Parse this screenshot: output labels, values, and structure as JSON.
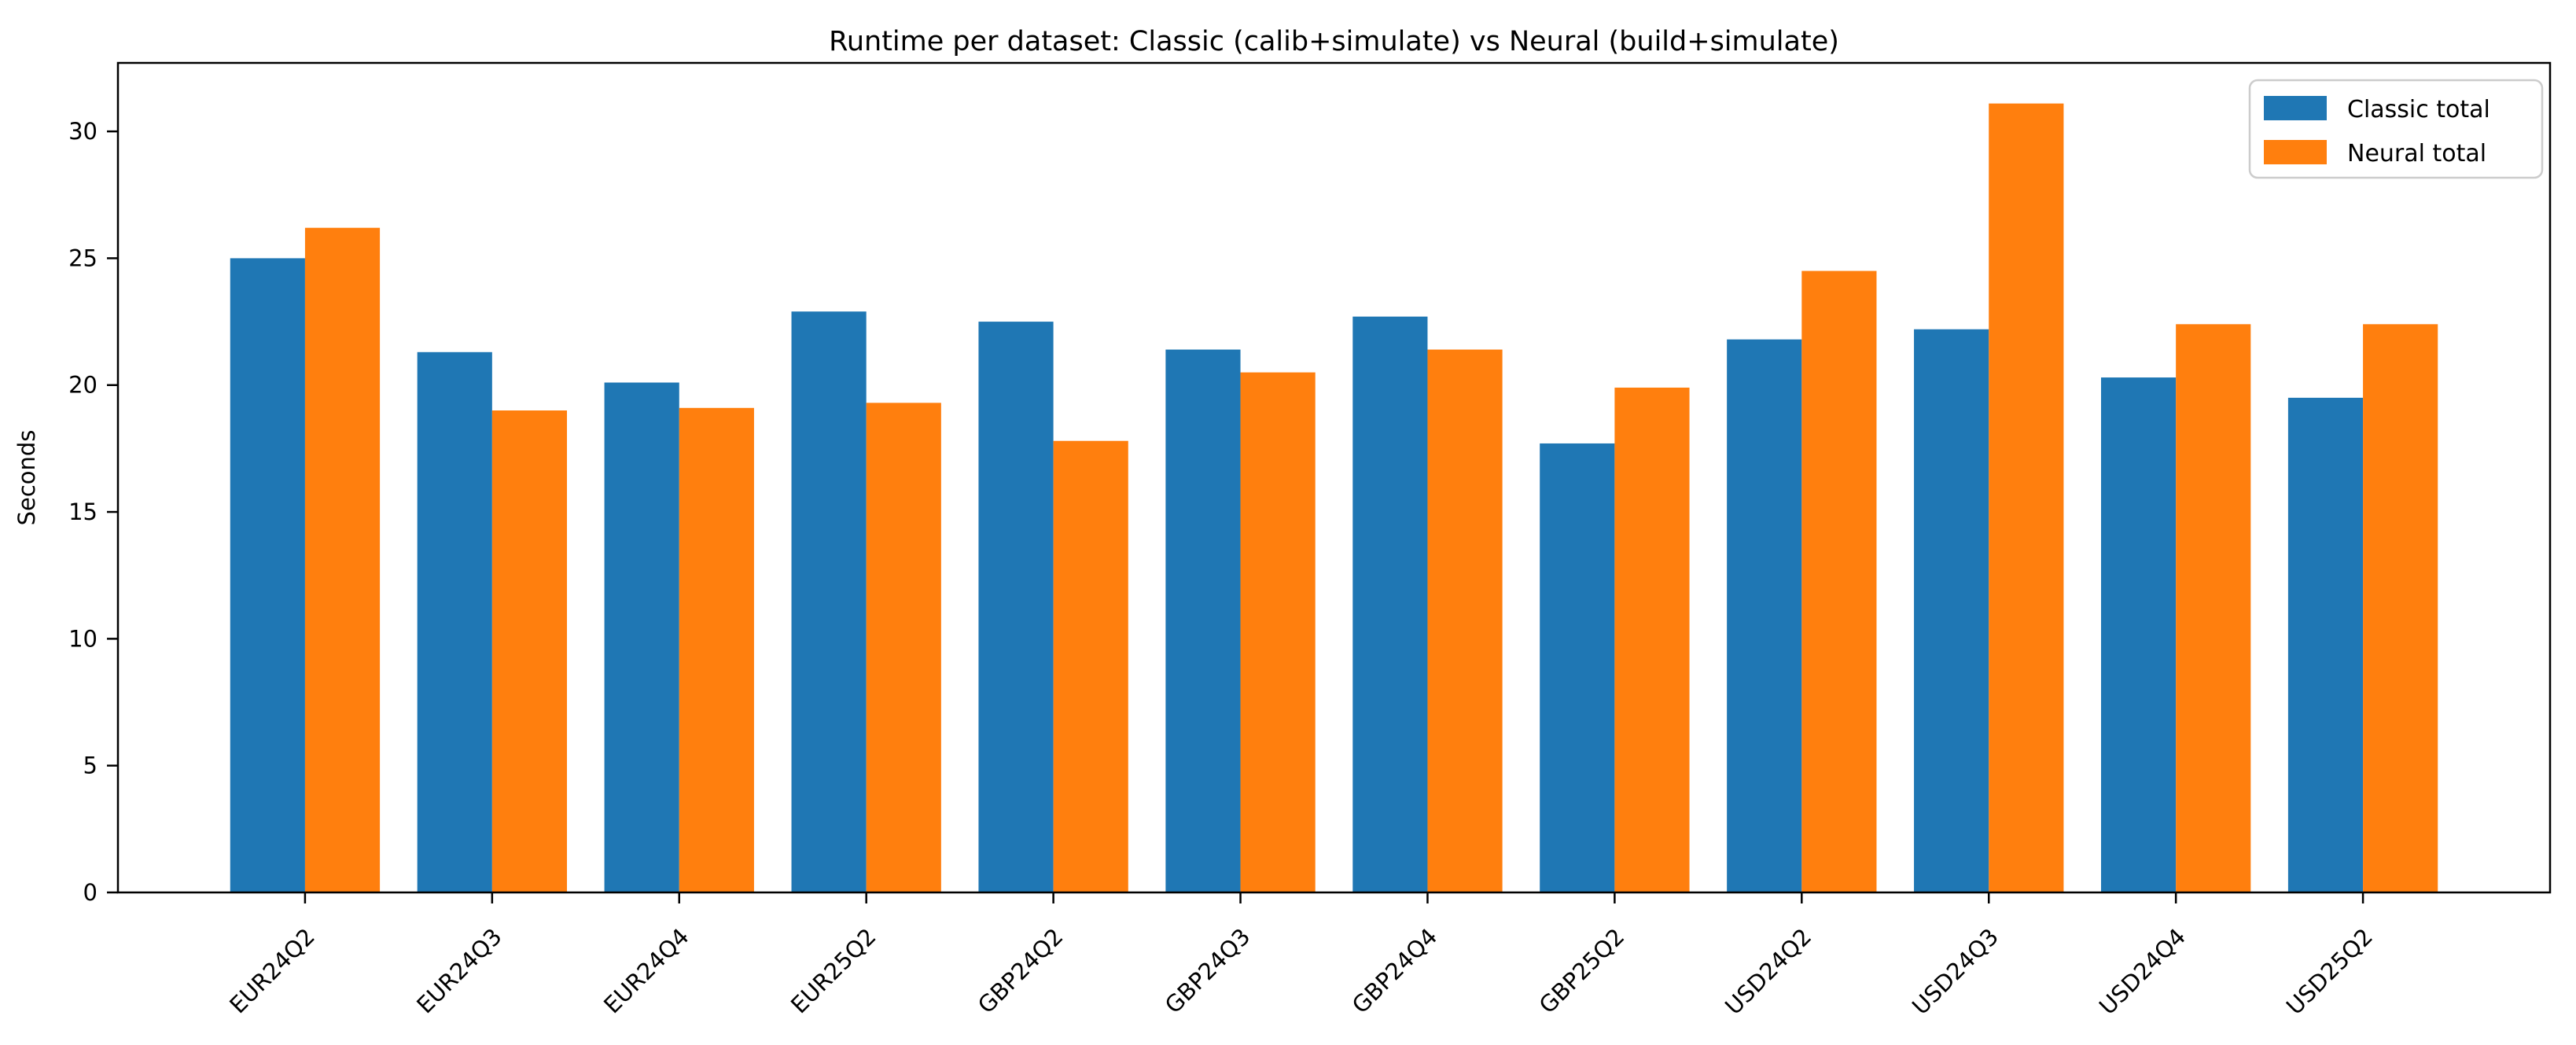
{
  "figure": {
    "background": "#ffffff",
    "axes_background": "#ffffff",
    "spine_color": "#000000",
    "text_color": "#000000"
  },
  "chart_data": {
    "type": "bar",
    "title": "Runtime per dataset: Classic (calib+simulate) vs Neural (build+simulate)",
    "xlabel": "",
    "ylabel": "Seconds",
    "categories": [
      "EUR24Q2",
      "EUR24Q3",
      "EUR24Q4",
      "EUR25Q2",
      "GBP24Q2",
      "GBP24Q3",
      "GBP24Q4",
      "GBP25Q2",
      "USD24Q2",
      "USD24Q3",
      "USD24Q4",
      "USD25Q2"
    ],
    "series": [
      {
        "name": "Classic total",
        "color": "#1f77b4",
        "values": [
          25.0,
          21.3,
          20.1,
          22.9,
          22.5,
          21.4,
          22.7,
          17.7,
          21.8,
          22.2,
          20.3,
          19.5
        ]
      },
      {
        "name": "Neural total",
        "color": "#ff7f0e",
        "values": [
          26.2,
          19.0,
          19.1,
          19.3,
          17.8,
          20.5,
          21.4,
          19.9,
          24.5,
          31.1,
          22.4,
          22.4
        ]
      }
    ],
    "yticks": [
      0,
      5,
      10,
      15,
      20,
      25,
      30
    ],
    "ylim": [
      0,
      32.7
    ],
    "grid": false,
    "bar_width_fraction": 0.4,
    "tick_label_rotation": 45,
    "legend": {
      "position": "upper right",
      "frame_color": "#cccccc",
      "frame_fill": "#ffffff",
      "entries": [
        "Classic total",
        "Neural total"
      ]
    }
  }
}
